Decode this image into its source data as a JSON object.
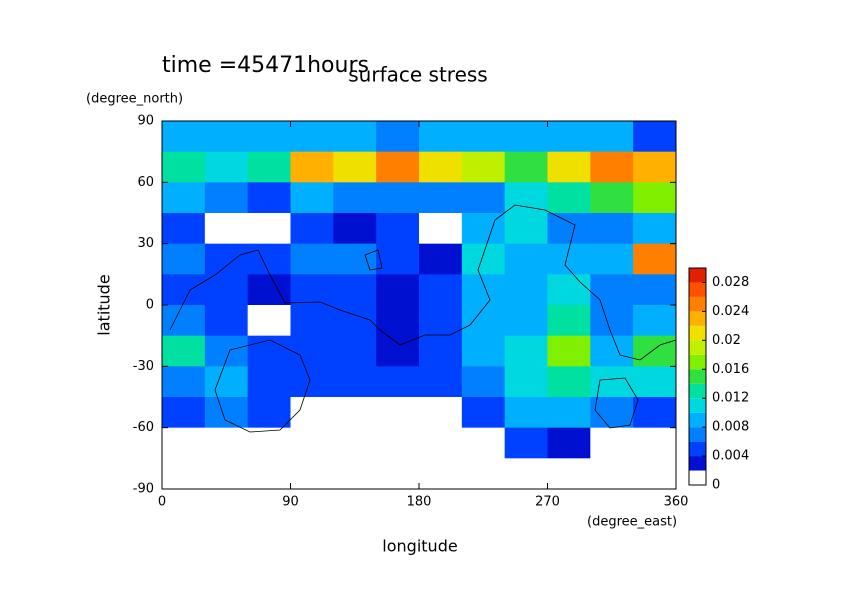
{
  "chart_data": {
    "type": "heatmap",
    "title": "surface stress",
    "subtitle": "time =45471hours",
    "x_label": "longitude",
    "x_unit": "(degree_east)",
    "y_label": "latitude",
    "y_unit": "(degree_north)",
    "x": [
      15,
      45,
      75,
      105,
      135,
      165,
      195,
      225,
      255,
      285,
      315,
      345
    ],
    "y": [
      82.5,
      67.5,
      52.5,
      37.5,
      22.5,
      7.5,
      -7.5,
      -22.5,
      -37.5,
      -52.5,
      -67.5,
      -82.5
    ],
    "z": [
      [
        0.008,
        0.008,
        0.008,
        0.008,
        0.008,
        0.006,
        0.008,
        0.008,
        0.008,
        0.008,
        0.008,
        0.004
      ],
      [
        0.012,
        0.01,
        0.012,
        0.022,
        0.02,
        0.024,
        0.02,
        0.018,
        0.014,
        0.02,
        0.024,
        0.022
      ],
      [
        0.008,
        0.006,
        0.004,
        0.008,
        0.006,
        0.006,
        0.006,
        0.006,
        0.01,
        0.012,
        0.014,
        0.016
      ],
      [
        0.004,
        0,
        0,
        0.004,
        0.002,
        0.004,
        0,
        0.008,
        0.01,
        0.006,
        0.006,
        0.008
      ],
      [
        0.006,
        0.004,
        0.004,
        0.006,
        0.006,
        0.004,
        0.002,
        0.01,
        0.008,
        0.008,
        0.008,
        0.024
      ],
      [
        0.004,
        0.004,
        0.002,
        0.004,
        0.004,
        0.002,
        0.004,
        0.008,
        0.008,
        0.01,
        0.006,
        0.006
      ],
      [
        0.006,
        0.004,
        0,
        0.004,
        0.004,
        0.002,
        0.004,
        0.008,
        0.008,
        0.012,
        0.006,
        0.008
      ],
      [
        0.012,
        0.006,
        0.004,
        0.004,
        0.004,
        0.002,
        0.004,
        0.008,
        0.01,
        0.016,
        0.008,
        0.014
      ],
      [
        0.006,
        0.008,
        0.004,
        0.004,
        0.004,
        0.004,
        0.004,
        0.006,
        0.01,
        0.012,
        0.01,
        0.01
      ],
      [
        0.004,
        0.006,
        0.004,
        0,
        0,
        0,
        0,
        0.004,
        0.008,
        0.008,
        0.006,
        0.004
      ],
      [
        0,
        0,
        0,
        0,
        0,
        0,
        0,
        0,
        0.004,
        0.002,
        0,
        0
      ],
      [
        0,
        0,
        0,
        0,
        0,
        0,
        0,
        0,
        0,
        0,
        0,
        0
      ]
    ],
    "xlim": [
      0,
      360
    ],
    "xticks": [
      0,
      90,
      180,
      270,
      360
    ],
    "ylim": [
      -90,
      90
    ],
    "yticks": [
      90,
      60,
      30,
      0,
      -30,
      -60,
      -90
    ],
    "colorbar": {
      "lim": [
        0,
        0.03
      ],
      "levels": [
        0,
        0.002,
        0.004,
        0.006,
        0.008,
        0.01,
        0.012,
        0.014,
        0.016,
        0.018,
        0.02,
        0.022,
        0.024,
        0.026,
        0.028,
        0.03
      ],
      "colors": [
        "#ffffff",
        "#0010d0",
        "#0040ff",
        "#0080ff",
        "#00b0ff",
        "#00d8e0",
        "#00e0a0",
        "#30e040",
        "#80f000",
        "#c0f000",
        "#f0e000",
        "#ffb000",
        "#ff8000",
        "#ff5000",
        "#e02000"
      ],
      "ticks": [
        0,
        0.004,
        0.008,
        0.012,
        0.016,
        0.02,
        0.024,
        0.028
      ]
    }
  }
}
